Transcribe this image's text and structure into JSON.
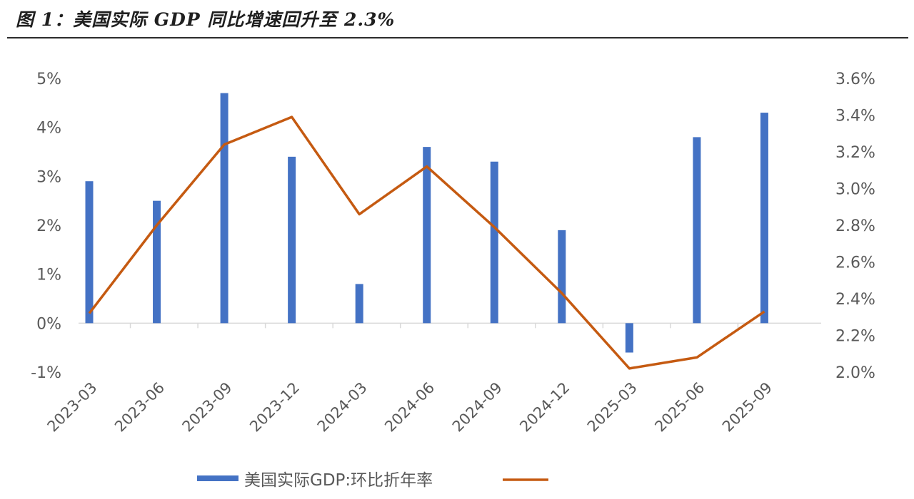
{
  "title": "图 1：美国实际 GDP 同比增速回升至 2.3%",
  "chart_data": {
    "type": "bar",
    "categories": [
      "2023-03",
      "2023-06",
      "2023-09",
      "2023-12",
      "2024-03",
      "2024-06",
      "2024-09",
      "2024-12",
      "2025-03",
      "2025-06",
      "2025-09"
    ],
    "series": [
      {
        "name": "美国实际GDP:环比折年率",
        "type": "bar",
        "axis": "left",
        "color": "#4472C4",
        "values": [
          2.9,
          2.5,
          4.7,
          3.4,
          0.8,
          3.6,
          3.3,
          1.9,
          -0.6,
          3.8,
          4.3
        ]
      },
      {
        "name": "",
        "type": "line",
        "axis": "right",
        "color": "#C55A11",
        "values": [
          2.32,
          2.8,
          3.24,
          3.39,
          2.86,
          3.12,
          2.79,
          2.43,
          2.02,
          2.08,
          2.33
        ]
      }
    ],
    "y_left": {
      "min": -1,
      "max": 5,
      "ticks": [
        "5%",
        "4%",
        "3%",
        "2%",
        "1%",
        "0%",
        "-1%"
      ]
    },
    "y_right": {
      "min": 2.0,
      "max": 3.6,
      "ticks": [
        "3.6%",
        "3.4%",
        "3.2%",
        "3.0%",
        "2.8%",
        "2.6%",
        "2.4%",
        "2.2%",
        "2.0%"
      ]
    },
    "grid": false,
    "legend_position": "bottom"
  }
}
